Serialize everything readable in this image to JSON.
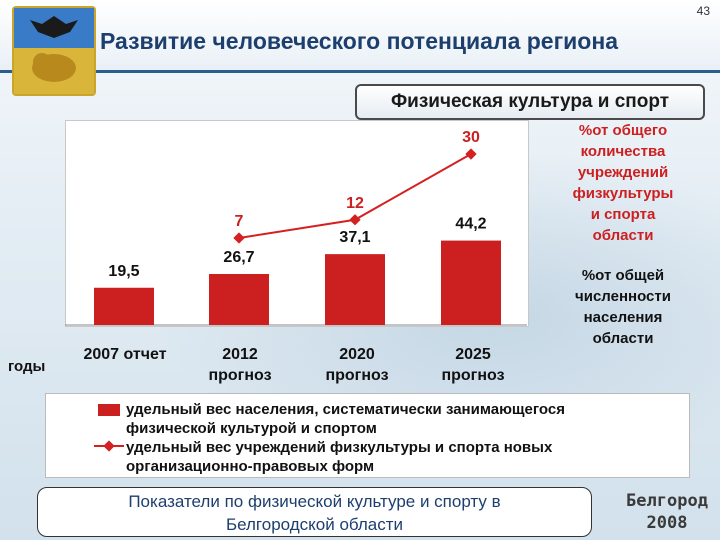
{
  "page_number": "43",
  "title": "Развитие человеческого потенциала региона",
  "section": "Физическая культура и спорт",
  "side_labels": {
    "red": [
      "%от общего",
      "количества",
      "учреждений",
      "физкультуры",
      "и спорта",
      "области"
    ],
    "black": [
      "%от общей",
      "численности",
      "населения",
      "области"
    ]
  },
  "years_label": "годы",
  "footer": {
    "line1": "Показатели по физической культуре и спорту в",
    "line2": "Белгородской области"
  },
  "brand": {
    "line1": "Белгород",
    "line2": "2008"
  },
  "colors": {
    "bar": "#cc1f1f",
    "line": "#d42020",
    "title": "#1d3f6e"
  },
  "chart_data": {
    "type": "bar",
    "categories": [
      [
        "2007 отчет"
      ],
      [
        "2012",
        "прогноз"
      ],
      [
        "2020",
        "прогноз"
      ],
      [
        "2025",
        "прогноз"
      ]
    ],
    "series": [
      {
        "name": "удельный вес населения, систематически занимающегося физической культурой и спортом",
        "type": "bar",
        "values": [
          19.5,
          26.7,
          37.1,
          44.2
        ],
        "labels": [
          "19,5",
          "26,7",
          "37,1",
          "44,2"
        ]
      },
      {
        "name": "удельный вес учреждений физкультуры и спорта новых организационно-правовых форм",
        "type": "line",
        "values": [
          null,
          7,
          12,
          30
        ],
        "labels": [
          "",
          "7",
          "12",
          "30"
        ]
      }
    ],
    "legend": [
      [
        "удельный вес населения, систематически занимающегося",
        "физической культурой и спортом"
      ],
      [
        "удельный вес учреждений физкультуры и спорта новых",
        "организационно-правовых форм"
      ]
    ],
    "legend_position": "bottom"
  }
}
